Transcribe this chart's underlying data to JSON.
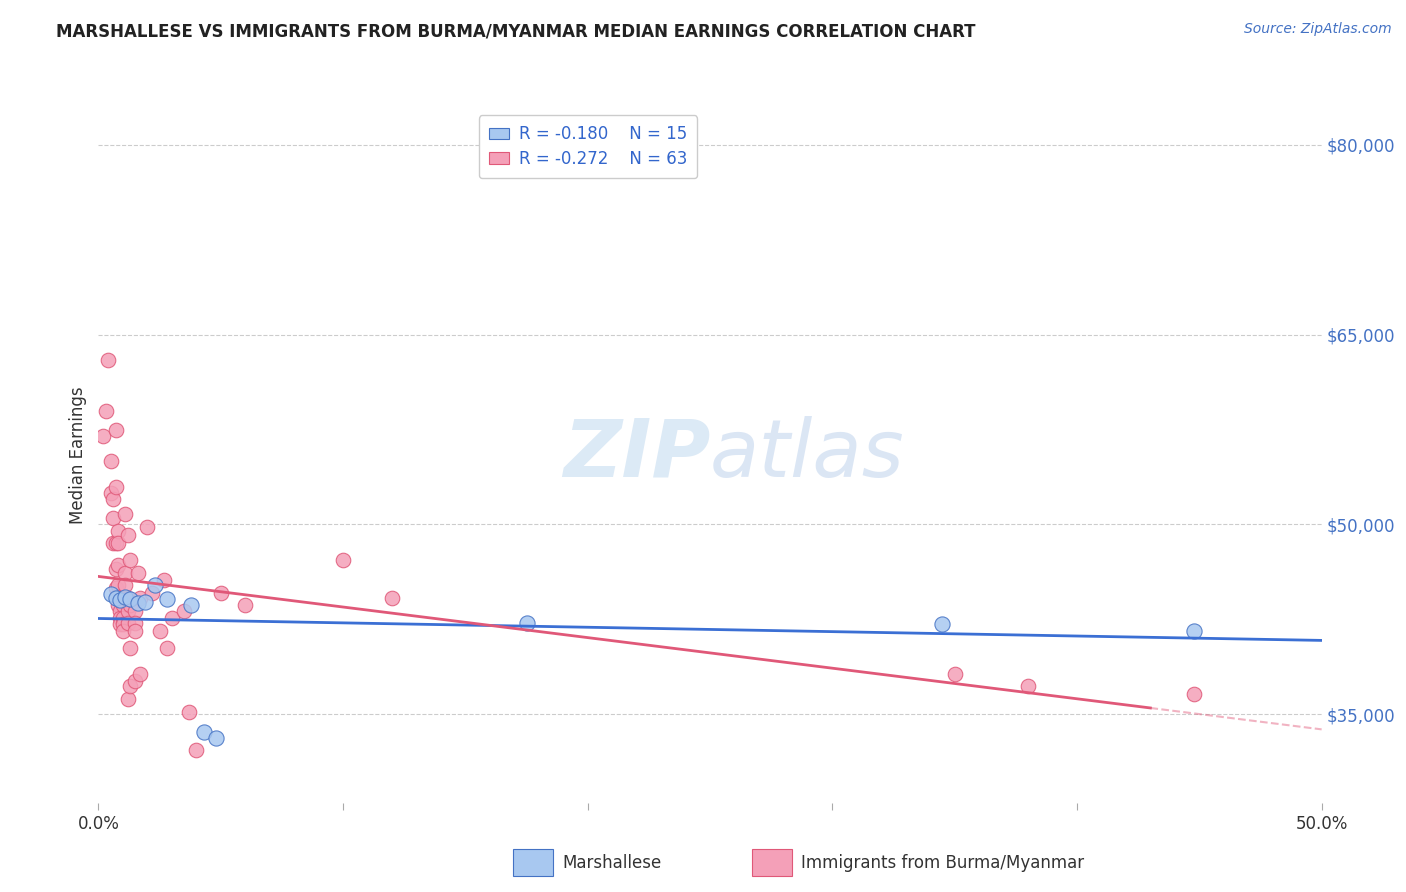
{
  "title": "MARSHALLESE VS IMMIGRANTS FROM BURMA/MYANMAR MEDIAN EARNINGS CORRELATION CHART",
  "source": "Source: ZipAtlas.com",
  "ylabel": "Median Earnings",
  "y_ticks": [
    35000,
    50000,
    65000,
    80000
  ],
  "y_tick_labels": [
    "$35,000",
    "$50,000",
    "$65,000",
    "$80,000"
  ],
  "x_ticks": [
    0.0,
    0.1,
    0.2,
    0.3,
    0.4,
    0.5
  ],
  "x_tick_labels": [
    "0.0%",
    "",
    "",
    "",
    "",
    "50.0%"
  ],
  "xlim": [
    0.0,
    0.5
  ],
  "ylim": [
    28000,
    83000
  ],
  "legend_blue_r": "R = -0.180",
  "legend_blue_n": "N = 15",
  "legend_pink_r": "R = -0.272",
  "legend_pink_n": "N = 63",
  "watermark_zip": "ZIP",
  "watermark_atlas": "atlas",
  "blue_color": "#a8c8f0",
  "pink_color": "#f4a0b8",
  "blue_edge_color": "#4472c4",
  "pink_edge_color": "#e05878",
  "blue_line_color": "#3b6fd4",
  "pink_line_color": "#e05878",
  "blue_points": [
    [
      0.005,
      44500
    ],
    [
      0.007,
      44200
    ],
    [
      0.009,
      44000
    ],
    [
      0.011,
      44300
    ],
    [
      0.013,
      44100
    ],
    [
      0.016,
      43800
    ],
    [
      0.019,
      43900
    ],
    [
      0.023,
      45200
    ],
    [
      0.028,
      44100
    ],
    [
      0.038,
      43600
    ],
    [
      0.043,
      33600
    ],
    [
      0.048,
      33100
    ],
    [
      0.175,
      42200
    ],
    [
      0.345,
      42100
    ],
    [
      0.448,
      41600
    ]
  ],
  "pink_points": [
    [
      0.002,
      57000
    ],
    [
      0.003,
      59000
    ],
    [
      0.004,
      63000
    ],
    [
      0.005,
      55000
    ],
    [
      0.005,
      52500
    ],
    [
      0.006,
      52000
    ],
    [
      0.006,
      50500
    ],
    [
      0.006,
      48500
    ],
    [
      0.007,
      57500
    ],
    [
      0.007,
      53000
    ],
    [
      0.007,
      48500
    ],
    [
      0.007,
      46500
    ],
    [
      0.007,
      45000
    ],
    [
      0.008,
      49500
    ],
    [
      0.008,
      48500
    ],
    [
      0.008,
      46800
    ],
    [
      0.008,
      45200
    ],
    [
      0.008,
      44300
    ],
    [
      0.008,
      43600
    ],
    [
      0.009,
      43200
    ],
    [
      0.009,
      42600
    ],
    [
      0.009,
      42100
    ],
    [
      0.01,
      44200
    ],
    [
      0.01,
      43600
    ],
    [
      0.01,
      42600
    ],
    [
      0.01,
      42100
    ],
    [
      0.01,
      41600
    ],
    [
      0.011,
      50800
    ],
    [
      0.011,
      46200
    ],
    [
      0.011,
      45200
    ],
    [
      0.011,
      44200
    ],
    [
      0.012,
      49200
    ],
    [
      0.012,
      44200
    ],
    [
      0.012,
      43200
    ],
    [
      0.012,
      42200
    ],
    [
      0.012,
      36200
    ],
    [
      0.013,
      47200
    ],
    [
      0.013,
      43600
    ],
    [
      0.013,
      40200
    ],
    [
      0.013,
      37200
    ],
    [
      0.015,
      43200
    ],
    [
      0.015,
      42200
    ],
    [
      0.015,
      41600
    ],
    [
      0.015,
      37600
    ],
    [
      0.016,
      46200
    ],
    [
      0.017,
      44200
    ],
    [
      0.017,
      38200
    ],
    [
      0.02,
      49800
    ],
    [
      0.022,
      44600
    ],
    [
      0.025,
      41600
    ],
    [
      0.027,
      45600
    ],
    [
      0.028,
      40200
    ],
    [
      0.03,
      42600
    ],
    [
      0.035,
      43200
    ],
    [
      0.037,
      35200
    ],
    [
      0.04,
      32200
    ],
    [
      0.05,
      44600
    ],
    [
      0.06,
      43600
    ],
    [
      0.1,
      47200
    ],
    [
      0.12,
      44200
    ],
    [
      0.35,
      38200
    ],
    [
      0.38,
      37200
    ],
    [
      0.448,
      36600
    ]
  ]
}
